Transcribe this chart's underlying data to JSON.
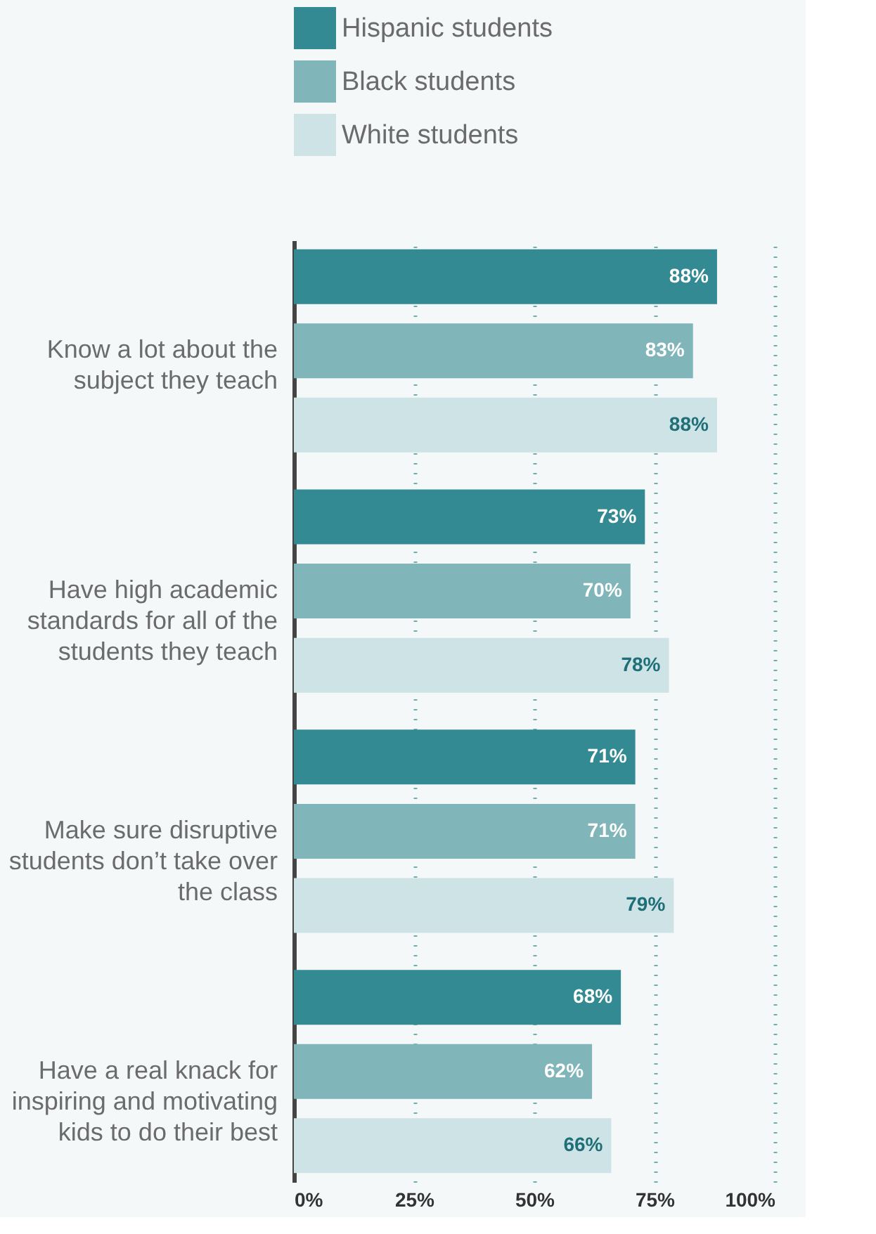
{
  "chart_data": {
    "type": "bar",
    "orientation": "horizontal",
    "categories": [
      "Know a lot about the\nsubject they teach",
      "Have high academic\nstandards for all of the\nstudents they teach",
      "Make sure disruptive\nstudents don’t take over\nthe class",
      "Have a real knack for\ninspiring and motivating\nkids to do their best"
    ],
    "series": [
      {
        "name": "Hispanic students",
        "color": "#338a92",
        "values": [
          88,
          73,
          71,
          68
        ],
        "value_labels": [
          "88%",
          "73%",
          "71%",
          "68%"
        ]
      },
      {
        "name": "Black students",
        "color": "#80b5b9",
        "values": [
          83,
          70,
          71,
          62
        ],
        "value_labels": [
          "83%",
          "70%",
          "71%",
          "62%"
        ]
      },
      {
        "name": "White students",
        "color": "#cde3e5",
        "values": [
          88,
          78,
          79,
          66
        ],
        "value_labels": [
          "88%",
          "78%",
          "79%",
          "66%"
        ]
      }
    ],
    "xlim": [
      0,
      100
    ],
    "xticks": [
      {
        "value": 0,
        "label": "0%"
      },
      {
        "value": 25,
        "label": "25%"
      },
      {
        "value": 50,
        "label": "50%"
      },
      {
        "value": 75,
        "label": "75%"
      },
      {
        "value": 100,
        "label": "100%"
      }
    ],
    "grid": "x",
    "legend": "top"
  }
}
